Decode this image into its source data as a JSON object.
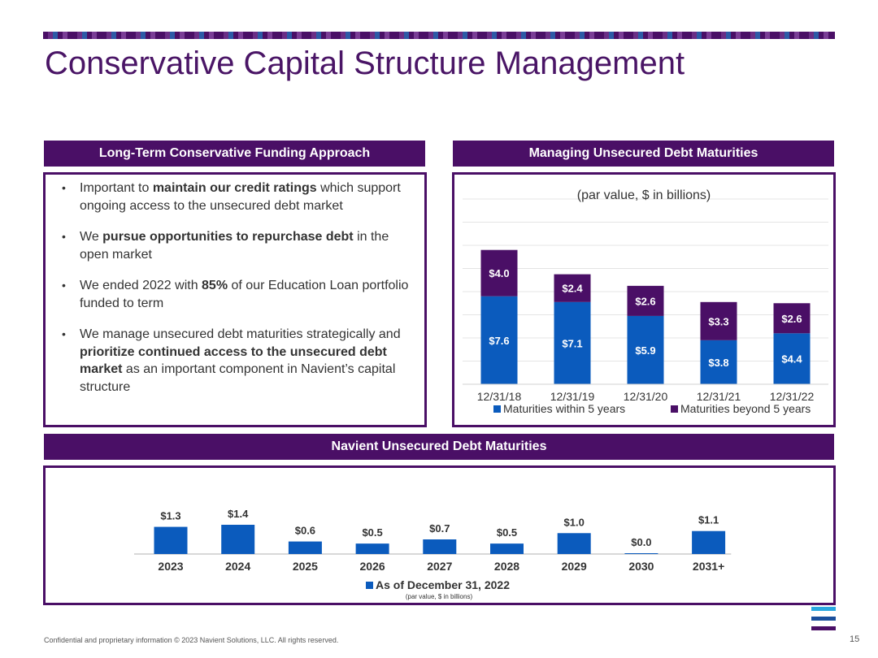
{
  "title": "Conservative Capital Structure Management",
  "colors": {
    "purple": "#4a0f66",
    "blue": "#0b5bbd",
    "title": "#4a1566"
  },
  "left_panel": {
    "header": "Long-Term Conservative Funding Approach",
    "bullets": [
      [
        {
          "t": "Important to ",
          "b": false
        },
        {
          "t": "maintain our credit ratings",
          "b": true
        },
        {
          "t": " which support ongoing access to the unsecured debt market",
          "b": false
        }
      ],
      [
        {
          "t": "We ",
          "b": false
        },
        {
          "t": "pursue opportunities to repurchase debt",
          "b": true
        },
        {
          "t": " in the open market",
          "b": false
        }
      ],
      [
        {
          "t": "We ended 2022 with ",
          "b": false
        },
        {
          "t": "85%",
          "b": true
        },
        {
          "t": " of our Education Loan portfolio funded to term",
          "b": false
        }
      ],
      [
        {
          "t": "We manage unsecured debt maturities strategically and ",
          "b": false
        },
        {
          "t": "prioritize continued access to the unsecured debt market",
          "b": true
        },
        {
          "t": " as an important component in Navient’s capital structure",
          "b": false
        }
      ]
    ]
  },
  "right_panel": {
    "header": "Managing Unsecured Debt Maturities"
  },
  "bottom_panel": {
    "header": "Navient Unsecured Debt Maturities"
  },
  "chart_data": [
    {
      "type": "bar",
      "stacked": true,
      "subtitle": "(par value, $ in billions)",
      "categories": [
        "12/31/18",
        "12/31/19",
        "12/31/20",
        "12/31/21",
        "12/31/22"
      ],
      "series": [
        {
          "name": "Maturities within 5 years",
          "color": "#0b5bbd",
          "values": [
            7.6,
            7.1,
            5.9,
            3.8,
            4.4
          ],
          "labels": [
            "$7.6",
            "$7.1",
            "$5.9",
            "$3.8",
            "$4.4"
          ]
        },
        {
          "name": "Maturities beyond 5 years",
          "color": "#4a0f66",
          "values": [
            4.0,
            2.4,
            2.6,
            3.3,
            2.6
          ],
          "labels": [
            "$4.0",
            "$2.4",
            "$2.6",
            "$3.3",
            "$2.6"
          ]
        }
      ],
      "ylim": [
        0,
        16
      ],
      "grid": true,
      "legend": "bottom"
    },
    {
      "type": "bar",
      "categories": [
        "2023",
        "2024",
        "2025",
        "2026",
        "2027",
        "2028",
        "2029",
        "2030",
        "2031+"
      ],
      "series": [
        {
          "name": "As of December 31, 2022",
          "color": "#0b5bbd",
          "values": [
            1.3,
            1.4,
            0.6,
            0.5,
            0.7,
            0.5,
            1.0,
            0.0,
            1.1
          ],
          "labels": [
            "$1.3",
            "$1.4",
            "$0.6",
            "$0.5",
            "$0.7",
            "$0.5",
            "$1.0",
            "$0.0",
            "$1.1"
          ]
        }
      ],
      "note": "(par value, $ in billions)",
      "ylim": [
        0,
        1.4
      ],
      "legend": "bottom"
    }
  ],
  "footer": "Confidential and proprietary information  © 2023 Navient Solutions, LLC. All rights reserved.",
  "page_number": "15"
}
